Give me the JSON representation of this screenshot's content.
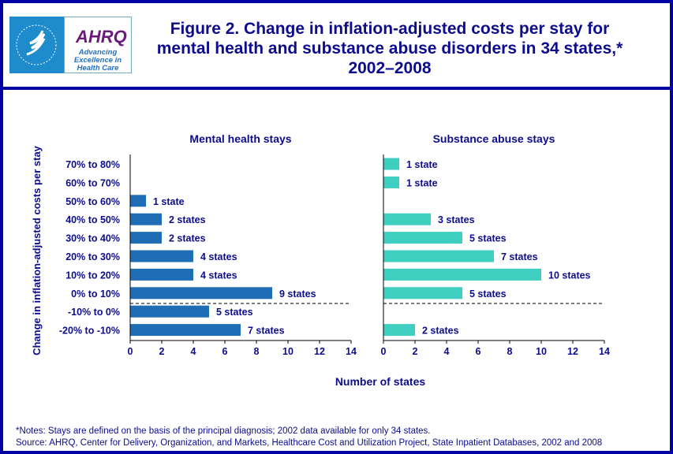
{
  "logo": {
    "agency": "AHRQ",
    "tagline": "Advancing Excellence in Health Care",
    "seal_text": "DEPARTMENT OF HEALTH & HUMAN SERVICES USA"
  },
  "title": "Figure 2. Change in inflation-adjusted costs per stay for mental health and substance abuse disorders in 34 states,* 2002–2008",
  "notes": [
    "*Notes: Stays are defined on the basis of the principal diagnosis; 2002 data available for only 34 states.",
    "Source:  AHRQ,  Center for Delivery, Organization, and Markets, Healthcare Cost and Utilization Project, State Inpatient Databases, 2002 and 2008"
  ],
  "chart_data": [
    {
      "type": "bar",
      "orientation": "horizontal",
      "title": "Mental health stays",
      "ylabel": "Change in inflation-adjusted  costs per stay",
      "xlabel": "Number of states",
      "categories": [
        "70% to 80%",
        "60% to 70%",
        "50% to 60%",
        "40% to 50%",
        "30% to 40%",
        "20% to 30%",
        "10% to 20%",
        "0% to 10%",
        "-10% to 0%",
        "-20% to -10%"
      ],
      "values": [
        0,
        0,
        1,
        2,
        2,
        4,
        4,
        9,
        5,
        7
      ],
      "data_labels": [
        "",
        "",
        "1 state",
        "2 states",
        "2 states",
        "4 states",
        "4 states",
        "9 states",
        "5 states",
        "7 states"
      ],
      "xlim": [
        0,
        14
      ],
      "xticks": [
        0,
        2,
        4,
        6,
        8,
        10,
        12,
        14
      ],
      "color": "#1f6db5",
      "grid": false
    },
    {
      "type": "bar",
      "orientation": "horizontal",
      "title": "Substance abuse stays",
      "xlabel": "Number of states",
      "categories": [
        "70% to 80%",
        "60% to 70%",
        "50% to 60%",
        "40% to 50%",
        "30% to 40%",
        "20% to 30%",
        "10% to 20%",
        "0% to 10%",
        "-10% to 0%",
        "-20% to -10%"
      ],
      "values": [
        1,
        1,
        0,
        3,
        5,
        7,
        10,
        5,
        0,
        2
      ],
      "data_labels": [
        "1 state",
        "1 state",
        "",
        "3 states",
        "5 states",
        "7 states",
        "10 states",
        "5 states",
        "",
        "2 states"
      ],
      "xlim": [
        0,
        14
      ],
      "xticks": [
        0,
        2,
        4,
        6,
        8,
        10,
        12,
        14
      ],
      "color": "#3ecfc0",
      "grid": false
    }
  ]
}
